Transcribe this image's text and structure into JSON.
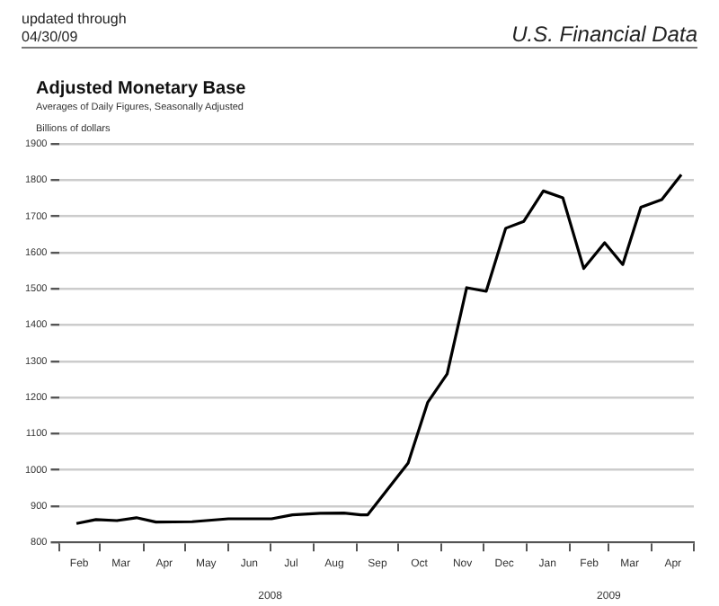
{
  "chart_data": {
    "type": "line",
    "title": "Adjusted Monetary Base",
    "subtitle": "Averages of Daily Figures, Seasonally Adjusted",
    "ylabel": "Billions of dollars",
    "annotations": [
      "updated through\n04/30/09",
      "U.S. Financial Data"
    ],
    "x": [
      "2008-02-13",
      "2008-02-27",
      "2008-03-13",
      "2008-03-27",
      "2008-04-10",
      "2008-05-06",
      "2008-06-01",
      "2008-07-02",
      "2008-07-17",
      "2008-08-06",
      "2008-08-23",
      "2008-09-04",
      "2008-09-09",
      "2008-10-08",
      "2008-10-22",
      "2008-11-05",
      "2008-11-19",
      "2008-12-03",
      "2008-12-17",
      "2008-12-30",
      "2009-01-13",
      "2009-01-27",
      "2009-02-11",
      "2009-02-26",
      "2009-03-11",
      "2009-03-24",
      "2009-04-08",
      "2009-04-22"
    ],
    "series": [
      {
        "color": "#000000",
        "values": [
          852,
          863,
          860,
          868,
          856,
          857,
          865,
          865,
          876,
          880,
          881,
          876,
          876,
          1019,
          1186,
          1265,
          1503,
          1493,
          1667,
          1686,
          1770,
          1751,
          1556,
          1627,
          1567,
          1725,
          1746,
          1815
        ]
      }
    ],
    "xlim": [
      "2008-02-01",
      "2009-05-01"
    ],
    "xticks": [
      {
        "value": "2008-02-01",
        "label": null
      },
      {
        "value": "2008-02-15",
        "label": "Feb"
      },
      {
        "value": "2008-03-01",
        "label": null
      },
      {
        "value": "2008-03-16",
        "label": "Mar"
      },
      {
        "value": "2008-04-01",
        "label": null
      },
      {
        "value": "2008-04-16",
        "label": "Apr"
      },
      {
        "value": "2008-05-01",
        "label": null
      },
      {
        "value": "2008-05-16",
        "label": "May"
      },
      {
        "value": "2008-06-01",
        "label": null
      },
      {
        "value": "2008-06-16",
        "label": "Jun"
      },
      {
        "value": "2008-07-01",
        "label": null
      },
      {
        "value": "2008-07-16",
        "label": "Jul"
      },
      {
        "value": "2008-08-01",
        "label": null
      },
      {
        "value": "2008-08-16",
        "label": "Aug"
      },
      {
        "value": "2008-09-01",
        "label": null
      },
      {
        "value": "2008-09-16",
        "label": "Sep"
      },
      {
        "value": "2008-10-01",
        "label": null
      },
      {
        "value": "2008-10-16",
        "label": "Oct"
      },
      {
        "value": "2008-11-01",
        "label": null
      },
      {
        "value": "2008-11-16",
        "label": "Nov"
      },
      {
        "value": "2008-12-01",
        "label": null
      },
      {
        "value": "2008-12-16",
        "label": "Dec"
      },
      {
        "value": "2009-01-01",
        "label": null
      },
      {
        "value": "2009-01-16",
        "label": "Jan"
      },
      {
        "value": "2009-02-01",
        "label": null
      },
      {
        "value": "2009-02-15",
        "label": "Feb"
      },
      {
        "value": "2009-03-01",
        "label": null
      },
      {
        "value": "2009-03-16",
        "label": "Mar"
      },
      {
        "value": "2009-04-01",
        "label": null
      },
      {
        "value": "2009-04-16",
        "label": "Apr"
      },
      {
        "value": "2009-05-01",
        "label": null
      }
    ],
    "x2lim": [
      "2008-02-01",
      "2009-05-01"
    ],
    "x2ticks": [
      {
        "value": "2008-07-01",
        "label": "2008"
      },
      {
        "value": "2009-03-01",
        "label": "2009"
      }
    ],
    "ylim": [
      800,
      1900
    ],
    "yticks": [
      800,
      900,
      1000,
      1100,
      1200,
      1300,
      1400,
      1500,
      1600,
      1700,
      1800,
      1900
    ],
    "grid": "y",
    "legend": false,
    "marker": "none",
    "line_style": "solid"
  }
}
